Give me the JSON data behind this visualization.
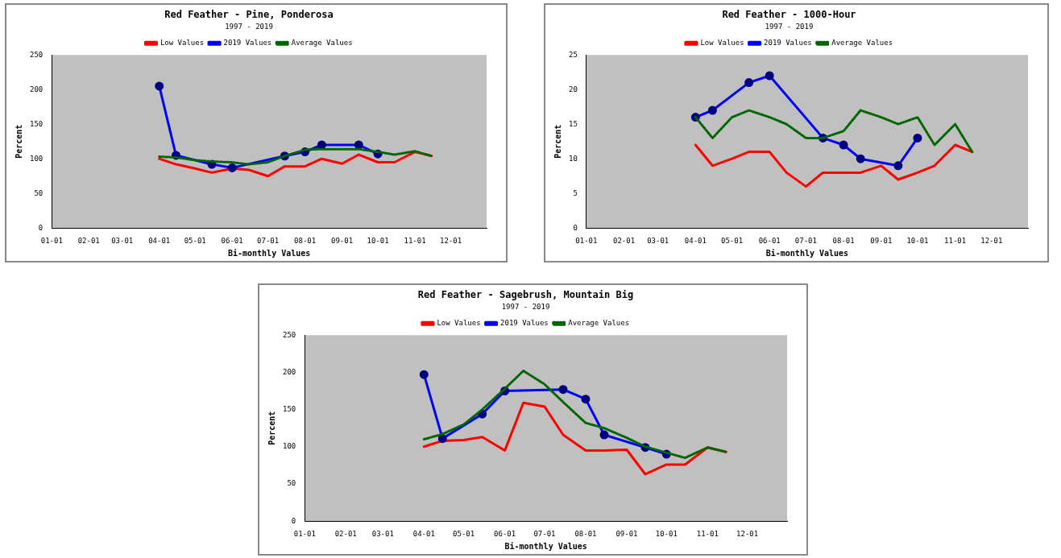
{
  "chart_data": [
    {
      "type": "line",
      "title": "Red Feather - Pine, Ponderosa",
      "subtitle": "1997 - 2019",
      "xlabel": "Bi-monthly Values",
      "ylabel": "Percent",
      "legend": "top",
      "grid": false,
      "x": [
        "--04-01",
        "--04-15",
        "--05-01",
        "--05-15",
        "--06-01",
        "--06-15",
        "--07-01",
        "--07-15",
        "--08-01",
        "--08-15",
        "--09-01",
        "--09-15",
        "--10-01",
        "--10-15",
        "--11-01",
        "--11-15"
      ],
      "xlim": [
        "--01-01",
        "--12-31"
      ],
      "xticks": [
        {
          "value": "--01-01",
          "label": "01-01"
        },
        {
          "value": "--02-01",
          "label": "02-01"
        },
        {
          "value": "--03-01",
          "label": "03-01"
        },
        {
          "value": "--04-01",
          "label": "04-01"
        },
        {
          "value": "--05-01",
          "label": "05-01"
        },
        {
          "value": "--06-01",
          "label": "06-01"
        },
        {
          "value": "--07-01",
          "label": "07-01"
        },
        {
          "value": "--08-01",
          "label": "08-01"
        },
        {
          "value": "--09-01",
          "label": "09-01"
        },
        {
          "value": "--10-01",
          "label": "10-01"
        },
        {
          "value": "--11-01",
          "label": "11-01"
        },
        {
          "value": "--12-01",
          "label": "12-01"
        }
      ],
      "ylim": [
        0,
        250
      ],
      "yticks": [
        0,
        50,
        100,
        150,
        200,
        250
      ],
      "series": [
        {
          "name": "Low Values",
          "color": "#ff0000",
          "marker": "none",
          "line_style": "solid",
          "values": [
            100,
            92,
            86,
            80,
            86,
            84,
            75,
            89,
            89,
            100,
            93,
            106,
            95,
            95,
            110,
            104
          ]
        },
        {
          "name": "2019 Values",
          "color": "#0000ff",
          "marker": "circle",
          "line_style": "solid",
          "x": [
            "--04-01",
            "--04-15",
            "--05-15",
            "--06-01",
            "--07-15",
            "--08-01",
            "--08-15",
            "--09-15",
            "--10-01"
          ],
          "values": [
            205,
            105,
            92,
            87,
            104,
            110,
            120,
            120,
            107
          ]
        },
        {
          "name": "Average Values",
          "color": "#006600",
          "marker": "none",
          "line_style": "dotted",
          "values": [
            103,
            102,
            98,
            96,
            95,
            92,
            95,
            104,
            113,
            114,
            114,
            114,
            110,
            106,
            111,
            104
          ]
        }
      ]
    },
    {
      "type": "line",
      "title": "Red Feather - 1000-Hour",
      "subtitle": "1997 - 2019",
      "xlabel": "Bi-monthly Values",
      "ylabel": "Percent",
      "legend": "top",
      "grid": false,
      "x": [
        "--04-01",
        "--04-15",
        "--05-01",
        "--05-15",
        "--06-01",
        "--06-15",
        "--07-01",
        "--07-15",
        "--08-01",
        "--08-15",
        "--09-01",
        "--09-15",
        "--10-01",
        "--10-15",
        "--11-01",
        "--11-15"
      ],
      "xlim": [
        "--01-01",
        "--12-31"
      ],
      "xticks": [
        {
          "value": "--01-01",
          "label": "01-01"
        },
        {
          "value": "--02-01",
          "label": "02-01"
        },
        {
          "value": "--03-01",
          "label": "03-01"
        },
        {
          "value": "--04-01",
          "label": "04-01"
        },
        {
          "value": "--05-01",
          "label": "05-01"
        },
        {
          "value": "--06-01",
          "label": "06-01"
        },
        {
          "value": "--07-01",
          "label": "07-01"
        },
        {
          "value": "--08-01",
          "label": "08-01"
        },
        {
          "value": "--09-01",
          "label": "09-01"
        },
        {
          "value": "--10-01",
          "label": "10-01"
        },
        {
          "value": "--11-01",
          "label": "11-01"
        },
        {
          "value": "--12-01",
          "label": "12-01"
        }
      ],
      "ylim": [
        0,
        25
      ],
      "yticks": [
        0,
        5,
        10,
        15,
        20,
        25
      ],
      "series": [
        {
          "name": "Low Values",
          "color": "#ff0000",
          "marker": "none",
          "line_style": "solid",
          "values": [
            12,
            9,
            10,
            11,
            11,
            8,
            6,
            8,
            8,
            8,
            9,
            7,
            8,
            9,
            12,
            11
          ]
        },
        {
          "name": "2019 Values",
          "color": "#0000ff",
          "marker": "circle",
          "line_style": "solid",
          "x": [
            "--04-01",
            "--04-15",
            "--05-15",
            "--06-01",
            "--07-15",
            "--08-01",
            "--08-15",
            "--09-15",
            "--10-01"
          ],
          "values": [
            16,
            17,
            21,
            22,
            13,
            12,
            10,
            9,
            13
          ]
        },
        {
          "name": "Average Values",
          "color": "#006600",
          "marker": "none",
          "line_style": "dotted",
          "values": [
            16,
            13,
            16,
            17,
            16,
            15,
            13,
            13,
            14,
            17,
            16,
            15,
            16,
            12,
            15,
            11
          ]
        }
      ]
    },
    {
      "type": "line",
      "title": "Red Feather - Sagebrush, Mountain Big",
      "subtitle": "1997 - 2019",
      "xlabel": "Bi-monthly Values",
      "ylabel": "Percent",
      "legend": "top",
      "grid": false,
      "x": [
        "--04-01",
        "--04-15",
        "--05-01",
        "--05-15",
        "--06-01",
        "--06-15",
        "--07-01",
        "--07-15",
        "--08-01",
        "--08-15",
        "--09-01",
        "--09-15",
        "--10-01",
        "--10-15",
        "--11-01",
        "--11-15"
      ],
      "xlim": [
        "--01-01",
        "--12-31"
      ],
      "xticks": [
        {
          "value": "--01-01",
          "label": "01-01"
        },
        {
          "value": "--02-01",
          "label": "02-01"
        },
        {
          "value": "--03-01",
          "label": "03-01"
        },
        {
          "value": "--04-01",
          "label": "04-01"
        },
        {
          "value": "--05-01",
          "label": "05-01"
        },
        {
          "value": "--06-01",
          "label": "06-01"
        },
        {
          "value": "--07-01",
          "label": "07-01"
        },
        {
          "value": "--08-01",
          "label": "08-01"
        },
        {
          "value": "--09-01",
          "label": "09-01"
        },
        {
          "value": "--10-01",
          "label": "10-01"
        },
        {
          "value": "--11-01",
          "label": "11-01"
        },
        {
          "value": "--12-01",
          "label": "12-01"
        }
      ],
      "ylim": [
        0,
        250
      ],
      "yticks": [
        0,
        50,
        100,
        150,
        200,
        250
      ],
      "series": [
        {
          "name": "Low Values",
          "color": "#ff0000",
          "marker": "none",
          "line_style": "solid",
          "values": [
            100,
            108,
            109,
            113,
            95,
            159,
            154,
            116,
            95,
            95,
            96,
            63,
            76,
            76,
            99,
            93
          ]
        },
        {
          "name": "2019 Values",
          "color": "#0000ff",
          "marker": "circle",
          "line_style": "solid",
          "x": [
            "--04-01",
            "--04-15",
            "--05-15",
            "--06-01",
            "--07-15",
            "--08-01",
            "--08-15",
            "--09-15",
            "--10-01"
          ],
          "values": [
            197,
            111,
            144,
            175,
            177,
            164,
            116,
            99,
            90
          ]
        },
        {
          "name": "Average Values",
          "color": "#006600",
          "marker": "none",
          "line_style": "dotted",
          "values": [
            110,
            117,
            130,
            150,
            178,
            202,
            184,
            160,
            132,
            125,
            112,
            100,
            92,
            85,
            99,
            93
          ]
        }
      ]
    }
  ]
}
